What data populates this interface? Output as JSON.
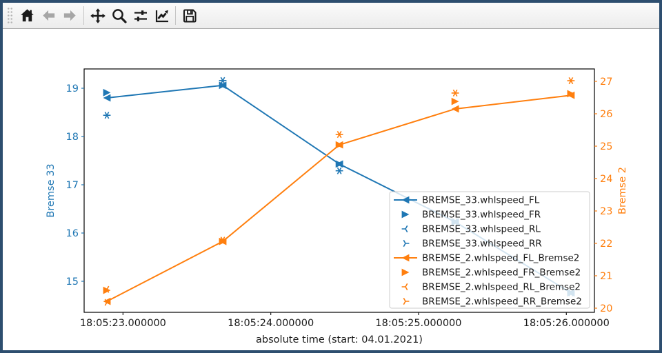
{
  "window": {
    "frame_color": "#2d4e6f",
    "background": "#ffffff"
  },
  "toolbar": {
    "buttons": [
      {
        "name": "home",
        "icon": "home-icon",
        "enabled": true
      },
      {
        "name": "back",
        "icon": "arrow-left-icon",
        "enabled": false
      },
      {
        "name": "forward",
        "icon": "arrow-right-icon",
        "enabled": false
      },
      {
        "name": "pan",
        "icon": "move-arrows-icon",
        "enabled": true
      },
      {
        "name": "zoom",
        "icon": "magnifier-icon",
        "enabled": true
      },
      {
        "name": "configure-subplots",
        "icon": "sliders-icon",
        "enabled": true
      },
      {
        "name": "edit-parameters",
        "icon": "line-chart-icon",
        "enabled": true
      },
      {
        "name": "save",
        "icon": "floppy-disk-icon",
        "enabled": true
      }
    ]
  },
  "chart_data": {
    "type": "line",
    "title": "",
    "xlabel": "absolute time (start: 04.01.2021)",
    "ylabel_left": "Bremse 33",
    "ylabel_right": "Bremse 2",
    "axis_color_left": "#1f77b4",
    "axis_color_right": "#ff7f0e",
    "tick_color_x": "#1a1a1a",
    "spine_color": "#000000",
    "xlim": [
      22.737,
      26.19
    ],
    "ylim_left": [
      14.357,
      19.4
    ],
    "ylim_right": [
      19.872,
      27.383
    ],
    "xticks": [
      {
        "v": 23,
        "label": "18:05:23.000000"
      },
      {
        "v": 24,
        "label": "18:05:24.000000"
      },
      {
        "v": 25,
        "label": "18:05:25.000000"
      },
      {
        "v": 26,
        "label": "18:05:26.000000"
      }
    ],
    "yticks_left": [
      15,
      16,
      17,
      18,
      19
    ],
    "yticks_right": [
      20,
      21,
      22,
      23,
      24,
      25,
      26,
      27
    ],
    "x": [
      22.891,
      23.675,
      24.464,
      25.248,
      26.031
    ],
    "series": [
      {
        "name": "BREMSE_33.whlspeed_FL",
        "axis": "left",
        "color": "#1f77b4",
        "marker": "triangle-left",
        "line": true,
        "values": [
          18.8,
          19.06,
          17.43,
          16.23,
          14.76
        ]
      },
      {
        "name": "BREMSE_33.whlspeed_FR",
        "axis": "left",
        "color": "#1f77b4",
        "marker": "triangle-right",
        "line": false,
        "values": [
          18.91,
          19.06,
          17.43,
          16.23,
          14.76
        ]
      },
      {
        "name": "BREMSE_33.whlspeed_RL",
        "axis": "left",
        "color": "#1f77b4",
        "marker": "tri-left",
        "line": false,
        "values": [
          18.44,
          19.16,
          17.29,
          16.23,
          14.76
        ]
      },
      {
        "name": "BREMSE_33.whlspeed_RR",
        "axis": "left",
        "color": "#1f77b4",
        "marker": "tri-right",
        "line": false,
        "values": [
          18.44,
          19.16,
          17.29,
          16.23,
          14.76
        ]
      },
      {
        "name": "BREMSE_2.whlspeed_FL_Bremse2",
        "axis": "right",
        "color": "#ff7f0e",
        "marker": "triangle-left",
        "line": true,
        "values": [
          20.21,
          22.06,
          25.04,
          26.15,
          26.57
        ]
      },
      {
        "name": "BREMSE_2.whlspeed_FR_Bremse2",
        "axis": "right",
        "color": "#ff7f0e",
        "marker": "triangle-right",
        "line": false,
        "values": [
          20.55,
          22.06,
          25.04,
          26.38,
          26.62
        ]
      },
      {
        "name": "BREMSE_2.whlspeed_RL_Bremse2",
        "axis": "right",
        "color": "#ff7f0e",
        "marker": "tri-left",
        "line": false,
        "values": [
          20.58,
          22.1,
          25.36,
          26.64,
          27.02
        ]
      },
      {
        "name": "BREMSE_2.whlspeed_RR_Bremse2",
        "axis": "right",
        "color": "#ff7f0e",
        "marker": "tri-right",
        "line": false,
        "values": [
          20.18,
          22.1,
          25.36,
          26.64,
          27.02
        ]
      }
    ],
    "legend": {
      "position": "lower right",
      "framealpha": 0.8,
      "entries": [
        "BREMSE_33.whlspeed_FL",
        "BREMSE_33.whlspeed_FR",
        "BREMSE_33.whlspeed_RL",
        "BREMSE_33.whlspeed_RR",
        "BREMSE_2.whlspeed_FL_Bremse2",
        "BREMSE_2.whlspeed_FR_Bremse2",
        "BREMSE_2.whlspeed_RL_Bremse2",
        "BREMSE_2.whlspeed_RR_Bremse2"
      ]
    },
    "grid": false
  }
}
